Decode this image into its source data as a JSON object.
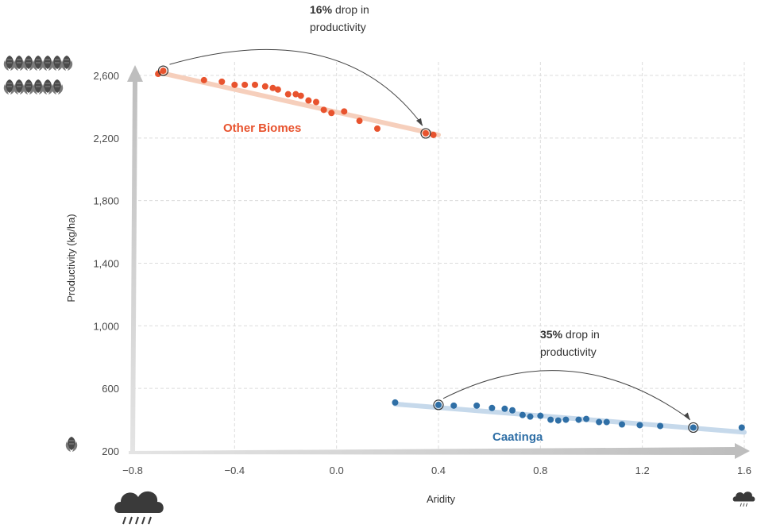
{
  "chart_data": {
    "type": "scatter",
    "xlabel": "Aridity",
    "ylabel": "Productivity (kg/ha)",
    "xlim": [
      -0.8,
      1.6
    ],
    "ylim": [
      200,
      2600
    ],
    "x_ticks": [
      "−0.8",
      "−0.4",
      "0.0",
      "0.4",
      "0.8",
      "1.2",
      "1.6"
    ],
    "y_ticks": [
      "2,600",
      "2,200",
      "1,800",
      "1,400",
      "1,000",
      "600",
      "200"
    ],
    "grid": true,
    "series": [
      {
        "name": "Other Biomes",
        "color": "#e8532e",
        "trend_color": "#f6cfbc",
        "trend": [
          [
            -0.7,
            2620
          ],
          [
            0.4,
            2220
          ]
        ],
        "points": [
          [
            -0.7,
            2610
          ],
          [
            -0.68,
            2630
          ],
          [
            -0.52,
            2570
          ],
          [
            -0.45,
            2560
          ],
          [
            -0.4,
            2540
          ],
          [
            -0.36,
            2540
          ],
          [
            -0.32,
            2540
          ],
          [
            -0.28,
            2530
          ],
          [
            -0.25,
            2520
          ],
          [
            -0.23,
            2510
          ],
          [
            -0.19,
            2480
          ],
          [
            -0.16,
            2480
          ],
          [
            -0.14,
            2470
          ],
          [
            -0.11,
            2440
          ],
          [
            -0.08,
            2430
          ],
          [
            -0.05,
            2380
          ],
          [
            -0.02,
            2360
          ],
          [
            0.03,
            2370
          ],
          [
            0.09,
            2310
          ],
          [
            0.16,
            2260
          ],
          [
            0.35,
            2230
          ],
          [
            0.38,
            2220
          ]
        ],
        "drop_pct": "16%",
        "drop_text": "drop in",
        "drop_text2": "productivity"
      },
      {
        "name": "Caatinga",
        "color": "#2f6fa6",
        "trend_color": "#c6d9eb",
        "trend": [
          [
            0.23,
            500
          ],
          [
            1.6,
            320
          ]
        ],
        "points": [
          [
            0.23,
            510
          ],
          [
            0.4,
            495
          ],
          [
            0.46,
            490
          ],
          [
            0.55,
            490
          ],
          [
            0.61,
            475
          ],
          [
            0.66,
            470
          ],
          [
            0.69,
            460
          ],
          [
            0.73,
            430
          ],
          [
            0.76,
            420
          ],
          [
            0.8,
            425
          ],
          [
            0.84,
            400
          ],
          [
            0.87,
            395
          ],
          [
            0.9,
            400
          ],
          [
            0.95,
            400
          ],
          [
            0.98,
            405
          ],
          [
            1.03,
            385
          ],
          [
            1.06,
            385
          ],
          [
            1.12,
            370
          ],
          [
            1.19,
            365
          ],
          [
            1.27,
            360
          ],
          [
            1.4,
            350
          ],
          [
            1.59,
            350
          ]
        ],
        "drop_pct": "35%",
        "drop_text": "drop in",
        "drop_text2": "productivity"
      }
    ],
    "icons": [
      "corn-cob-icon",
      "rain-cloud-icon"
    ]
  }
}
